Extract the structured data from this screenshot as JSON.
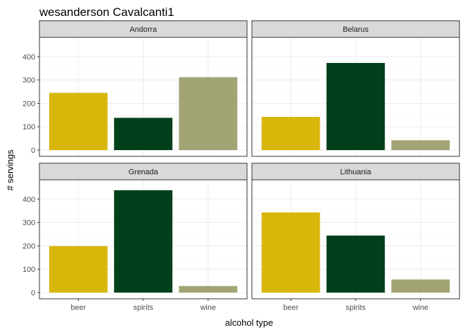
{
  "chart_data": {
    "type": "bar",
    "title": "wesanderson Cavalcanti1",
    "xlabel": "alcohol type",
    "ylabel": "# servings",
    "categories": [
      "beer",
      "spirits",
      "wine"
    ],
    "ylim": [
      0,
      450
    ],
    "yticks": [
      0,
      100,
      200,
      300,
      400
    ],
    "grid": true,
    "legend": "none",
    "colors": {
      "beer": "#D8B70A",
      "spirits": "#02401B",
      "wine": "#A2A475"
    },
    "panel_style": {
      "strip_fill": "#d9d9d9",
      "border": "#333333",
      "grid_major": "#ebebeb",
      "grid_minor": "#f5f5f5"
    },
    "facets": [
      {
        "name": "Andorra",
        "values": [
          245,
          138,
          312
        ]
      },
      {
        "name": "Belarus",
        "values": [
          142,
          373,
          42
        ]
      },
      {
        "name": "Grenada",
        "values": [
          199,
          438,
          28
        ]
      },
      {
        "name": "Lithuania",
        "values": [
          343,
          244,
          56
        ]
      }
    ]
  }
}
